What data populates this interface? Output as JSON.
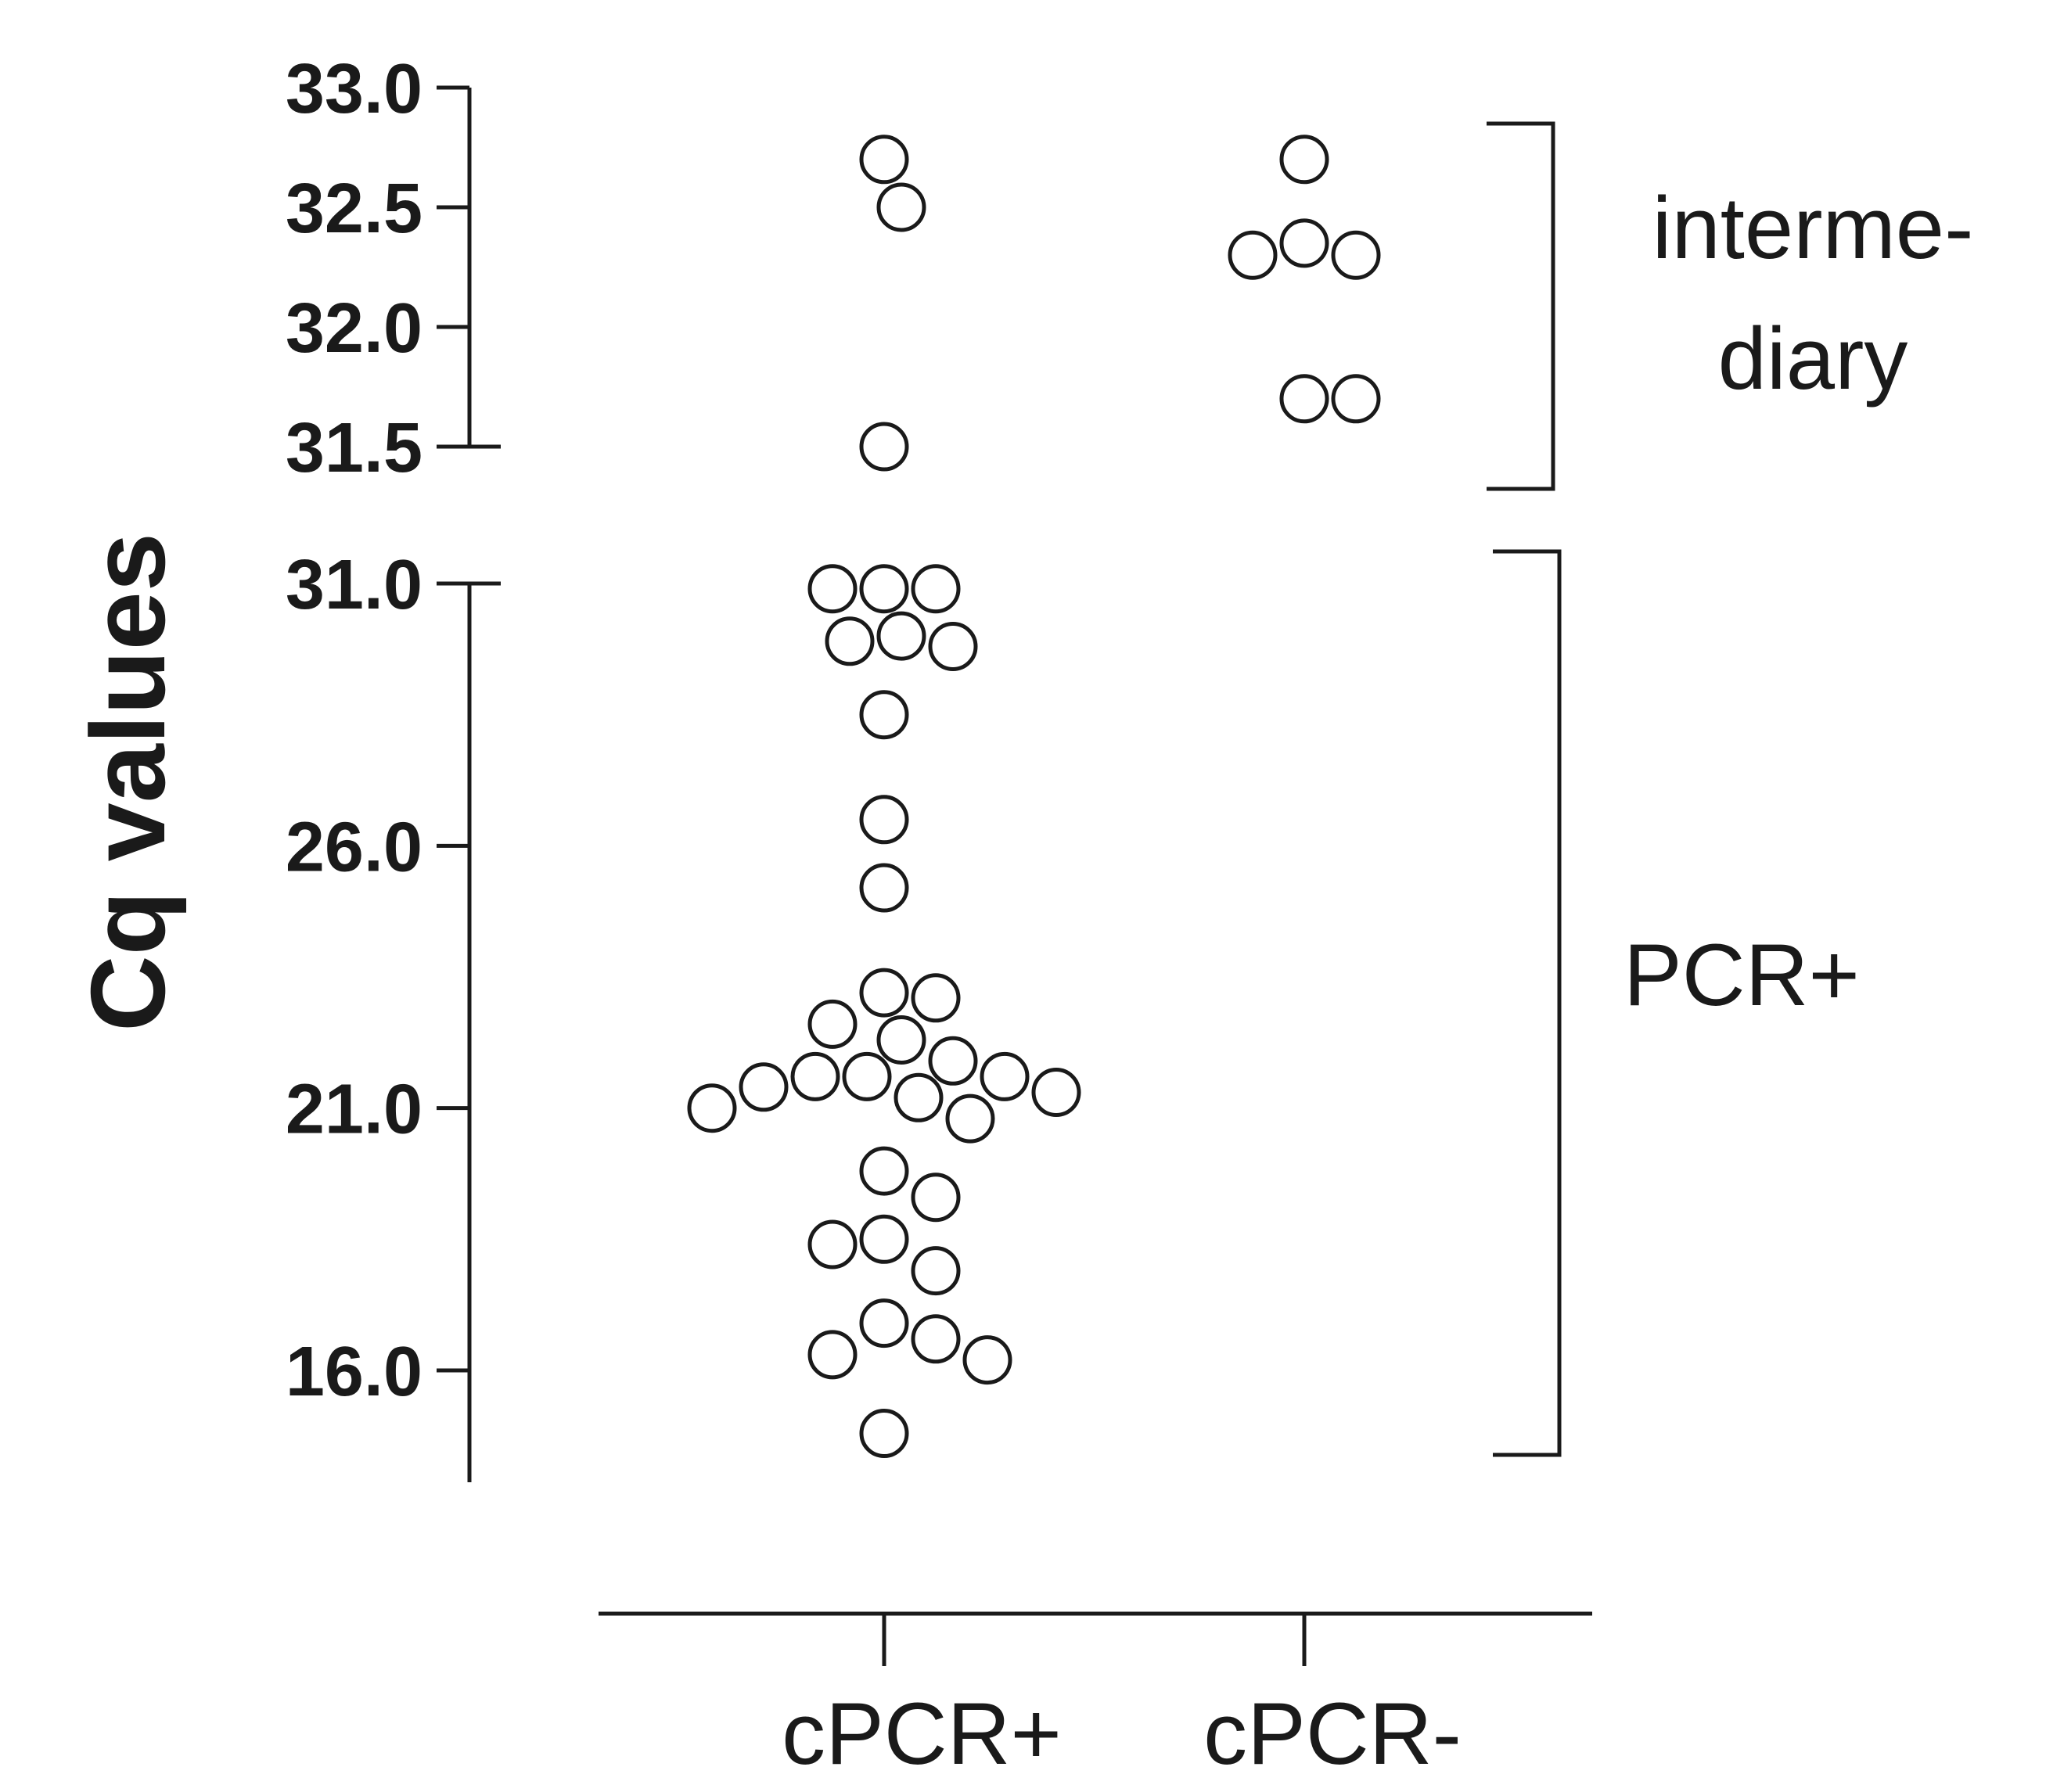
{
  "chart_data": {
    "type": "scatter",
    "ylabel": "Cq values",
    "y_axis": {
      "broken": true,
      "upper_segment": {
        "range": [
          31.5,
          33.0
        ],
        "ticks": [
          "33.0",
          "32.5",
          "32.0",
          "31.5"
        ]
      },
      "lower_segment": {
        "range": [
          14.0,
          31.0
        ],
        "ticks": [
          "31.0",
          "26.0",
          "21.0",
          "16.0"
        ]
      }
    },
    "categories": [
      "cPCR+",
      "cPCR-"
    ],
    "series": [
      {
        "category": "cPCR+",
        "values": [
          32.7,
          32.5,
          31.5,
          30.9,
          30.9,
          30.9,
          30.0,
          29.9,
          29.8,
          28.5,
          26.5,
          25.2,
          23.2,
          23.1,
          22.6,
          22.3,
          21.9,
          21.6,
          21.6,
          21.6,
          21.4,
          21.3,
          21.2,
          21.0,
          20.8,
          19.8,
          19.3,
          18.5,
          18.4,
          17.9,
          16.9,
          16.6,
          16.3,
          16.2,
          14.8
        ]
      },
      {
        "category": "cPCR-",
        "values": [
          32.7,
          32.35,
          32.3,
          32.3,
          31.7,
          31.7
        ]
      }
    ],
    "annotations": [
      {
        "lines": [
          "interme-",
          "diary"
        ],
        "y_range": [
          31.3,
          32.9
        ]
      },
      {
        "lines": [
          "PCR+"
        ],
        "y_range": [
          14.3,
          31.2
        ]
      }
    ]
  }
}
